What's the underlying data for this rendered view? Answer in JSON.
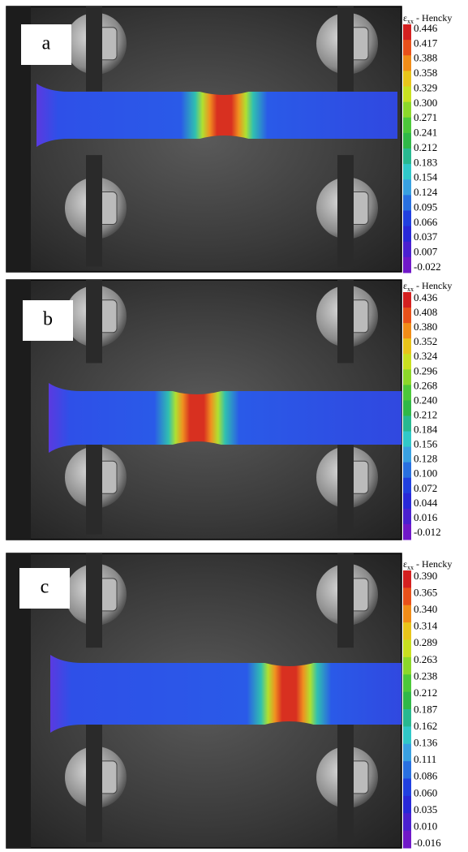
{
  "panels": [
    {
      "label": "a",
      "colorbar_title": {
        "symbol": "ε",
        "subscript": "xx",
        "text": " - Hencky"
      },
      "ticks": [
        "0.446",
        "0.417",
        "0.388",
        "0.358",
        "0.329",
        "0.300",
        "0.271",
        "0.241",
        "0.212",
        "0.183",
        "0.154",
        "0.124",
        "0.095",
        "0.066",
        "0.037",
        "0.007",
        "-0.022"
      ]
    },
    {
      "label": "b",
      "colorbar_title": {
        "symbol": "ε",
        "subscript": "xx",
        "text": " - Hencky"
      },
      "ticks": [
        "0.436",
        "0.408",
        "0.380",
        "0.352",
        "0.324",
        "0.296",
        "0.268",
        "0.240",
        "0.212",
        "0.184",
        "0.156",
        "0.128",
        "0.100",
        "0.072",
        "0.044",
        "0.016",
        "-0.012"
      ]
    },
    {
      "label": "c",
      "colorbar_title": {
        "symbol": "ε",
        "subscript": "xx",
        "text": " - Hencky"
      },
      "ticks": [
        "0.390",
        "0.365",
        "0.340",
        "0.314",
        "0.289",
        "0.263",
        "0.238",
        "0.212",
        "0.187",
        "0.162",
        "0.136",
        "0.111",
        "0.086",
        "0.060",
        "0.035",
        "0.010",
        "-0.016"
      ]
    }
  ]
}
